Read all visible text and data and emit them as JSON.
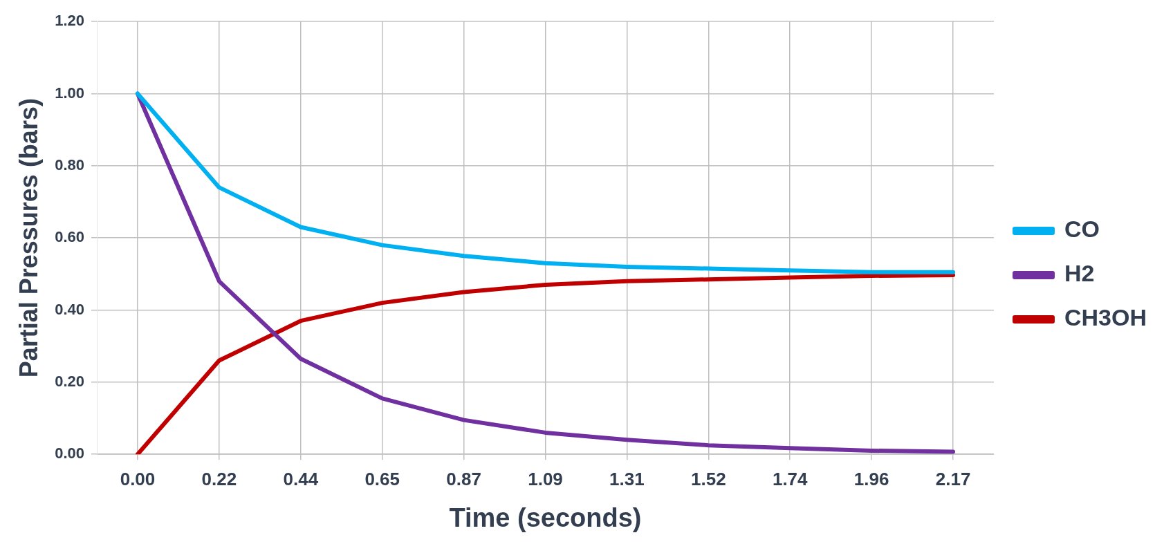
{
  "chart_data": {
    "type": "line",
    "xlabel": "Time (seconds)",
    "ylabel": "Partial Pressures (bars)",
    "categories": [
      "0.00",
      "0.22",
      "0.44",
      "0.65",
      "0.87",
      "1.09",
      "1.31",
      "1.52",
      "1.74",
      "1.96",
      "2.17"
    ],
    "series": [
      {
        "name": "CO",
        "color": "#00b0f0",
        "values": [
          1.0,
          0.74,
          0.63,
          0.58,
          0.55,
          0.53,
          0.52,
          0.515,
          0.51,
          0.505,
          0.505
        ]
      },
      {
        "name": "H2",
        "color": "#7030a0",
        "values": [
          1.0,
          0.48,
          0.265,
          0.155,
          0.095,
          0.06,
          0.04,
          0.025,
          0.017,
          0.01,
          0.007
        ]
      },
      {
        "name": "CH3OH",
        "color": "#c00000",
        "values": [
          0.0,
          0.26,
          0.37,
          0.42,
          0.45,
          0.47,
          0.48,
          0.485,
          0.49,
          0.495,
          0.497
        ]
      }
    ],
    "ylim": [
      0,
      1.2
    ],
    "yticks": [
      {
        "value": 0,
        "label": "0.00"
      },
      {
        "value": 0.2,
        "label": "0.20"
      },
      {
        "value": 0.4,
        "label": "0.40"
      },
      {
        "value": 0.6,
        "label": "0.60"
      },
      {
        "value": 0.8,
        "label": "0.80"
      },
      {
        "value": 1,
        "label": "1.00"
      },
      {
        "value": 1.2,
        "label": "1.20"
      }
    ],
    "grid": true,
    "legend": "right",
    "marker": "none",
    "line_style": "solid"
  }
}
